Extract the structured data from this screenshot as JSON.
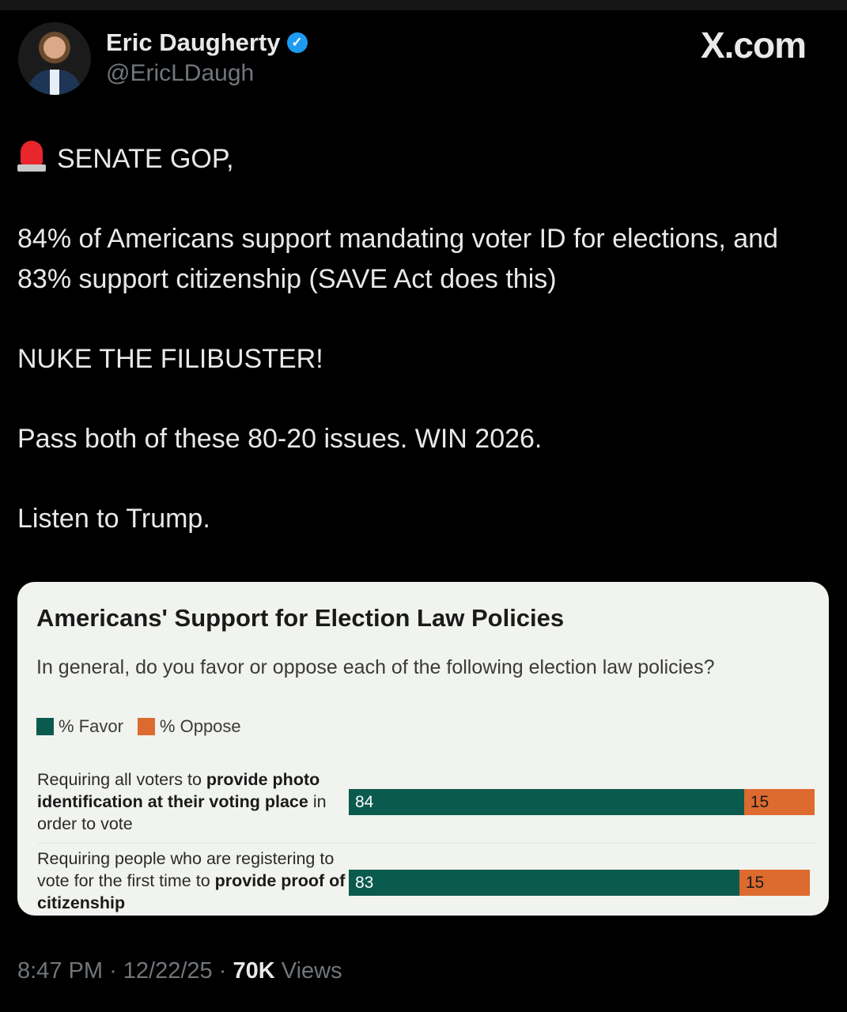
{
  "header": {
    "name": "Eric Daugherty",
    "handle": "@EricLDaugh",
    "verified": true,
    "brand": "X.com"
  },
  "tweet": {
    "emoji": "rotating-light",
    "lines": [
      "SENATE GOP,",
      "84% of Americans support mandating voter ID for elections, and 83% support citizenship (SAVE Act does this)",
      "NUKE THE FILIBUSTER!",
      "Pass both of these 80-20 issues. WIN 2026.",
      "Listen to Trump."
    ]
  },
  "chart_data": {
    "type": "bar",
    "stacked": true,
    "orientation": "horizontal",
    "title": "Americans' Support for Election Law Policies",
    "subtitle": "In general, do you favor or oppose each of the following election law policies?",
    "legend_position": "top-left",
    "categories": [
      [
        {
          "t": "Requiring all voters to ",
          "b": false
        },
        {
          "t": "provide photo identification at their voting place",
          "b": true
        },
        {
          "t": " in order to vote",
          "b": false
        }
      ],
      [
        {
          "t": "Requiring people who are registering to vote for the first time to ",
          "b": false
        },
        {
          "t": "provide proof of citizenship",
          "b": true
        }
      ]
    ],
    "series": [
      {
        "name": "% Favor",
        "color": "#0b5a4e",
        "values": [
          84,
          83
        ]
      },
      {
        "name": "% Oppose",
        "color": "#dd6a2e",
        "values": [
          15,
          15
        ]
      }
    ],
    "xlim": [
      0,
      100
    ]
  },
  "footer": {
    "time": "8:47 PM",
    "date": "12/22/25",
    "views_count": "70K",
    "views_label": "Views",
    "sep": "·"
  }
}
